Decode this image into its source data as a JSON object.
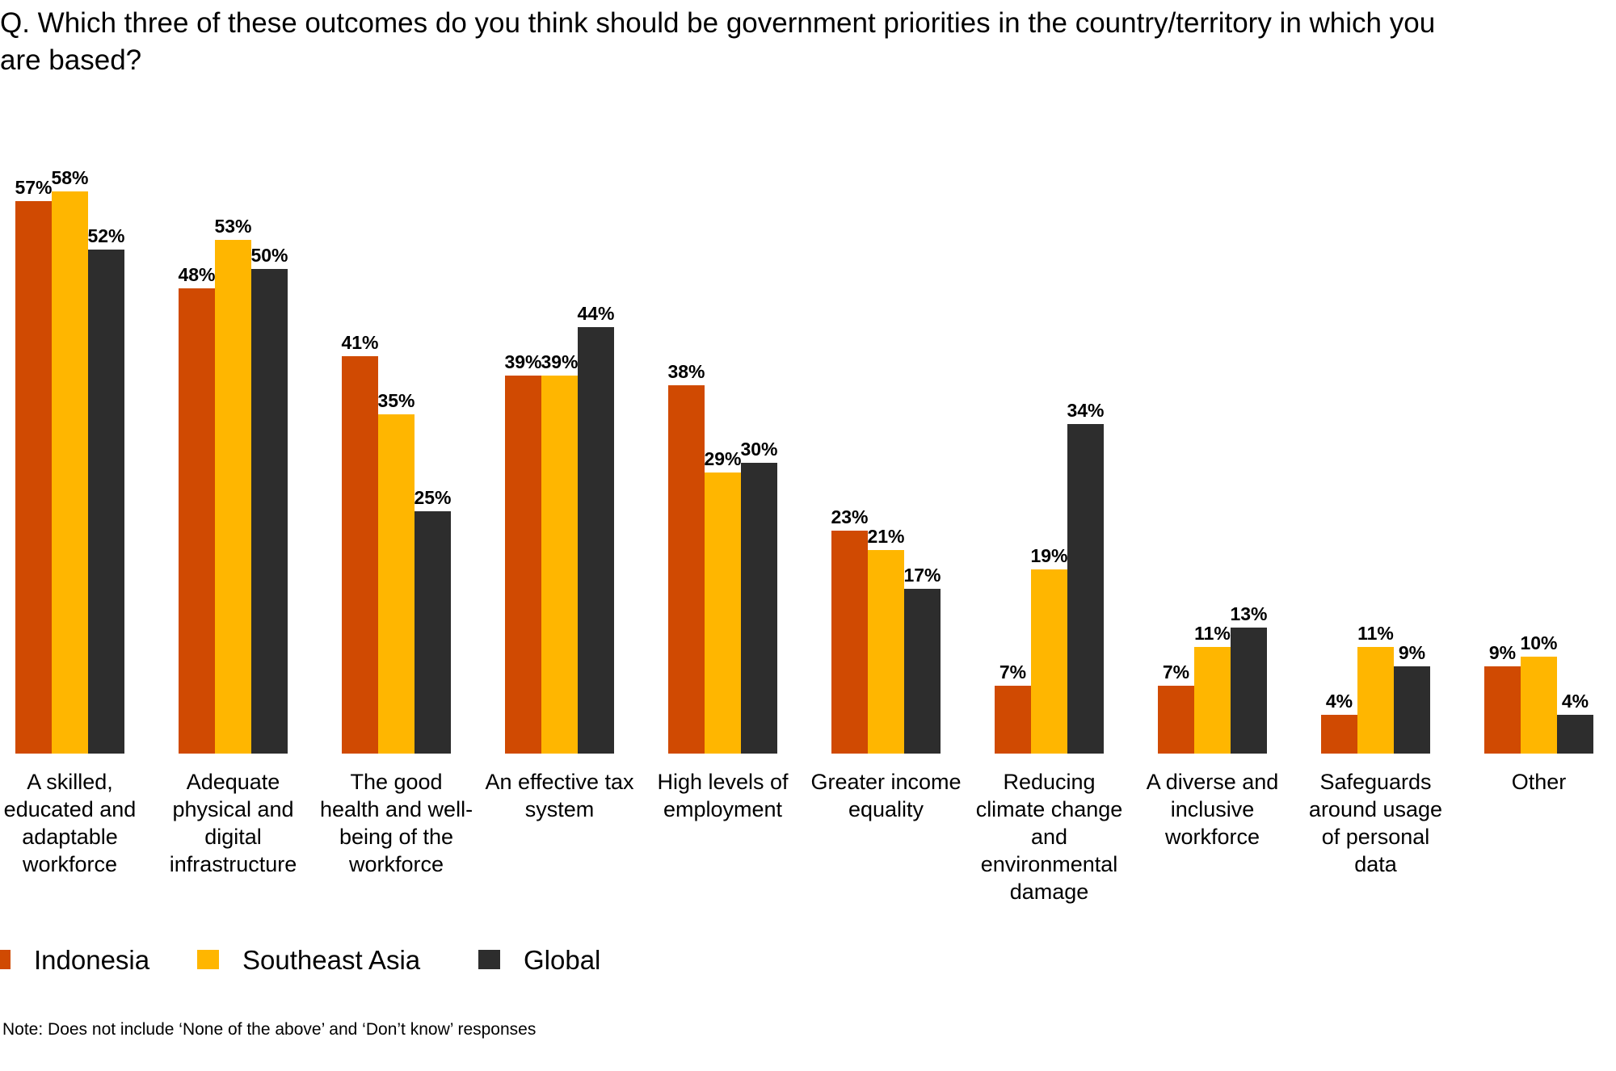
{
  "chart_data": {
    "type": "bar",
    "title_lines": [
      "Q. Which three of these outcomes do you think should be government priorities in the country/territory in which you",
      "are based?"
    ],
    "categories": [
      [
        "A skilled,",
        "educated and",
        "adaptable",
        "workforce"
      ],
      [
        "Adequate",
        "physical and",
        "digital",
        "infrastructure"
      ],
      [
        "The good",
        "health and well-",
        "being of the",
        "workforce"
      ],
      [
        "An effective tax",
        "system"
      ],
      [
        "High levels of",
        "employment"
      ],
      [
        "Greater income",
        "equality"
      ],
      [
        "Reducing",
        "climate change",
        "and",
        "environmental",
        "damage"
      ],
      [
        "A diverse and",
        "inclusive",
        "workforce"
      ],
      [
        "Safeguards",
        "around usage",
        "of personal",
        "data"
      ],
      [
        "Other"
      ]
    ],
    "series": [
      {
        "name": "Indonesia",
        "color": "#D04A02",
        "values": [
          57,
          48,
          41,
          39,
          38,
          23,
          7,
          7,
          4,
          9
        ]
      },
      {
        "name": "Southeast Asia",
        "color": "#FFB600",
        "values": [
          58,
          53,
          35,
          39,
          29,
          21,
          19,
          11,
          11,
          10
        ]
      },
      {
        "name": "Global",
        "color": "#2D2D2D",
        "values": [
          52,
          50,
          25,
          44,
          30,
          17,
          34,
          13,
          9,
          4
        ]
      }
    ],
    "value_suffix": "%",
    "ylim": [
      0,
      60
    ],
    "grid": false,
    "legend_position": "bottom-left",
    "note": "Note: Does not include ‘None of the above’ and ‘Don’t know’ responses"
  }
}
